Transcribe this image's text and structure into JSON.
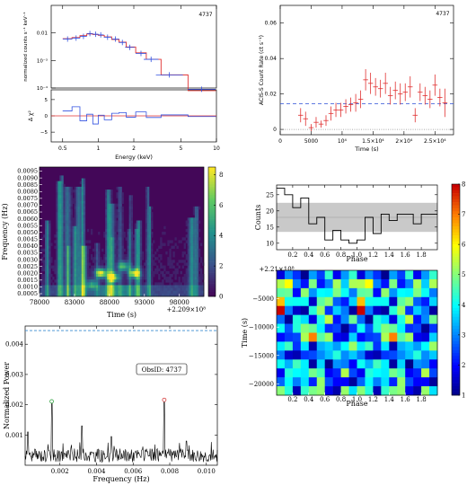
{
  "chart_data": [
    {
      "id": "spectrum",
      "type": "scatter",
      "obsid": "4737",
      "ylabel": "normalized counts s⁻¹ keV⁻¹",
      "resid_label": "Δ χ²",
      "xlabel": "Energy (keV)",
      "x_scale": "log",
      "y_scale": "log",
      "xlim": [
        0.4,
        10
      ],
      "ylim": [
        0.0001,
        0.1
      ],
      "x_ticks": [
        "0.5",
        "1",
        "2",
        "5",
        "10"
      ],
      "y_ticks": [
        "0.01",
        "10⁻³",
        "10⁻⁴"
      ],
      "y_tick_values": [
        0.01,
        0.001,
        0.0001
      ],
      "resid_ylim": [
        -8,
        8
      ],
      "resid_ticks": [
        "5",
        "0",
        "−5"
      ],
      "resid_tick_values": [
        5,
        0,
        -5
      ],
      "data": {
        "x": [
          0.55,
          0.65,
          0.75,
          0.85,
          0.95,
          1.05,
          1.2,
          1.4,
          1.6,
          1.85,
          2.3,
          2.8,
          4.0,
          7.5
        ],
        "y": [
          0.006,
          0.0065,
          0.0075,
          0.0095,
          0.009,
          0.0085,
          0.007,
          0.006,
          0.0045,
          0.003,
          0.0018,
          0.0011,
          0.0003,
          9e-05
        ]
      },
      "model": {
        "x": [
          0.55,
          0.65,
          0.75,
          0.85,
          0.95,
          1.05,
          1.2,
          1.4,
          1.6,
          1.85,
          2.3,
          2.8,
          4.0,
          7.5
        ],
        "y": [
          0.0062,
          0.0068,
          0.008,
          0.0092,
          0.0088,
          0.0082,
          0.0072,
          0.0058,
          0.0046,
          0.0031,
          0.0019,
          0.0011,
          0.0003,
          8e-05
        ]
      },
      "residuals": [
        1.5,
        2.8,
        -1.5,
        0.5,
        -2.5,
        0.2,
        -1.2,
        0.8,
        1.0,
        -0.4,
        1.2,
        -0.5,
        0.3,
        -0.2
      ]
    },
    {
      "id": "lightcurve",
      "type": "scatter",
      "obsid": "4737",
      "ylabel": "ACIS-S Count Rate (ct s⁻¹)",
      "xlabel": "Time (s)",
      "xlim": [
        0,
        28000
      ],
      "ylim": [
        -0.003,
        0.07
      ],
      "x_ticks": [
        "0",
        "5000",
        "10⁴",
        "1.5×10⁴",
        "2×10⁴",
        "2.5×10⁴"
      ],
      "x_tick_values": [
        0,
        5000,
        10000,
        15000,
        20000,
        25000
      ],
      "y_ticks": [
        "0",
        "0.02",
        "0.04",
        "0.06"
      ],
      "y_tick_values": [
        0,
        0.02,
        0.04,
        0.06
      ],
      "mean": 0.0145,
      "x": [
        3300,
        4100,
        5000,
        5800,
        6600,
        7400,
        8200,
        9000,
        9800,
        10600,
        11400,
        12200,
        13000,
        13800,
        14600,
        15400,
        16200,
        17000,
        17800,
        18600,
        19400,
        20200,
        21000,
        21800,
        22600,
        23400,
        24200,
        25000,
        25800,
        26600
      ],
      "y": [
        0.008,
        0.006,
        0.001,
        0.004,
        0.003,
        0.005,
        0.009,
        0.011,
        0.011,
        0.013,
        0.014,
        0.015,
        0.017,
        0.028,
        0.026,
        0.024,
        0.023,
        0.026,
        0.019,
        0.022,
        0.02,
        0.021,
        0.024,
        0.008,
        0.021,
        0.019,
        0.017,
        0.025,
        0.018,
        0.015
      ],
      "err": [
        0.004,
        0.004,
        0.002,
        0.003,
        0.002,
        0.003,
        0.004,
        0.004,
        0.004,
        0.004,
        0.004,
        0.005,
        0.005,
        0.006,
        0.006,
        0.005,
        0.005,
        0.006,
        0.005,
        0.005,
        0.006,
        0.005,
        0.006,
        0.004,
        0.005,
        0.005,
        0.005,
        0.006,
        0.005,
        0.008
      ]
    },
    {
      "id": "wavelet",
      "type": "heatmap",
      "ylabel": "Frequency (Hz)",
      "xlabel": "Time (s)",
      "x_offset_label": "+2.209×10⁸",
      "x_ticks": [
        "78000",
        "83000",
        "88000",
        "93000",
        "98000"
      ],
      "x_tick_values": [
        78000,
        83000,
        88000,
        93000,
        98000
      ],
      "y_ticks": [
        "0.0095",
        "0.0090",
        "0.0085",
        "0.0080",
        "0.0075",
        "0.0070",
        "0.0065",
        "0.0060",
        "0.0055",
        "0.0050",
        "0.0045",
        "0.0040",
        "0.0035",
        "0.0030",
        "0.0025",
        "0.0020",
        "0.0015",
        "0.0010",
        "0.0005"
      ],
      "xlim": [
        78000,
        101500
      ],
      "ylim": [
        0.0003,
        0.0098
      ],
      "colorbar_ticks": [
        "0",
        "2",
        "4",
        "6",
        "8"
      ],
      "colorbar_range": [
        0,
        8.5
      ],
      "peaks": [
        {
          "t": 86800,
          "f": 0.002,
          "v": 8
        },
        {
          "t": 88500,
          "f": 0.0017,
          "v": 7
        },
        {
          "t": 90000,
          "f": 0.0025,
          "v": 5
        },
        {
          "t": 91600,
          "f": 0.002,
          "v": 7
        },
        {
          "t": 85500,
          "f": 0.0012,
          "v": 4
        }
      ]
    },
    {
      "id": "periodogram",
      "type": "line",
      "ylabel": "Normalized Power",
      "xlabel": "Frequency (Hz)",
      "annotation": "ObsID: 4737",
      "xlim": [
        0.0001,
        0.0106
      ],
      "ylim": [
        0,
        0.0046
      ],
      "x_ticks": [
        "0.002",
        "0.004",
        "0.006",
        "0.008",
        "0.010"
      ],
      "x_tick_values": [
        0.002,
        0.004,
        0.006,
        0.008,
        0.01
      ],
      "y_ticks": [
        "0.001",
        "0.002",
        "0.003",
        "0.004"
      ],
      "y_tick_values": [
        0.001,
        0.002,
        0.003,
        0.004
      ],
      "threshold": 0.00445,
      "peaks": [
        {
          "f": 0.00155,
          "p": 0.00205,
          "color": "#3aa64a"
        },
        {
          "f": 0.0077,
          "p": 0.0021,
          "color": "#d43b3b"
        },
        {
          "f": 0.0032,
          "p": 0.0013
        },
        {
          "f": 0.0048,
          "p": 0.00095
        },
        {
          "f": 0.00025,
          "p": 0.0011
        },
        {
          "f": 0.0089,
          "p": 0.0008
        }
      ]
    },
    {
      "id": "folded",
      "type": "line",
      "ylabel": "Counts",
      "xlabel": "Phase",
      "x_offset_label": "+2.21×10⁸",
      "xlim": [
        0,
        2
      ],
      "ylim": [
        8,
        28
      ],
      "x_ticks": [
        "0.2",
        "0.4",
        "0.6",
        "0.8",
        "1.0",
        "1.2",
        "1.4",
        "1.6",
        "1.8"
      ],
      "x_tick_values": [
        0.2,
        0.4,
        0.6,
        0.8,
        1.0,
        1.2,
        1.4,
        1.6,
        1.8
      ],
      "y_ticks": [
        "10",
        "15",
        "20",
        "25"
      ],
      "y_tick_values": [
        10,
        15,
        20,
        25
      ],
      "band": [
        13.5,
        22.5
      ],
      "counts": [
        27,
        25,
        21,
        24,
        16,
        18,
        11,
        14,
        11,
        10,
        11,
        18,
        13,
        19,
        17,
        19,
        19,
        16,
        19,
        19
      ],
      "phase2": {
        "xlabel": "Phase",
        "ylabel": "Time (s)",
        "y_ticks": [
          "−5000",
          "−10000",
          "−15000",
          "−20000"
        ],
        "y_tick_values": [
          -5000,
          -10000,
          -15000,
          -20000
        ],
        "ylim": [
          -22000,
          0
        ],
        "colorbar_ticks": [
          "1",
          "2",
          "3",
          "4",
          "5",
          "6",
          "7",
          "8"
        ],
        "colorbar_range": [
          1,
          8
        ]
      }
    }
  ]
}
